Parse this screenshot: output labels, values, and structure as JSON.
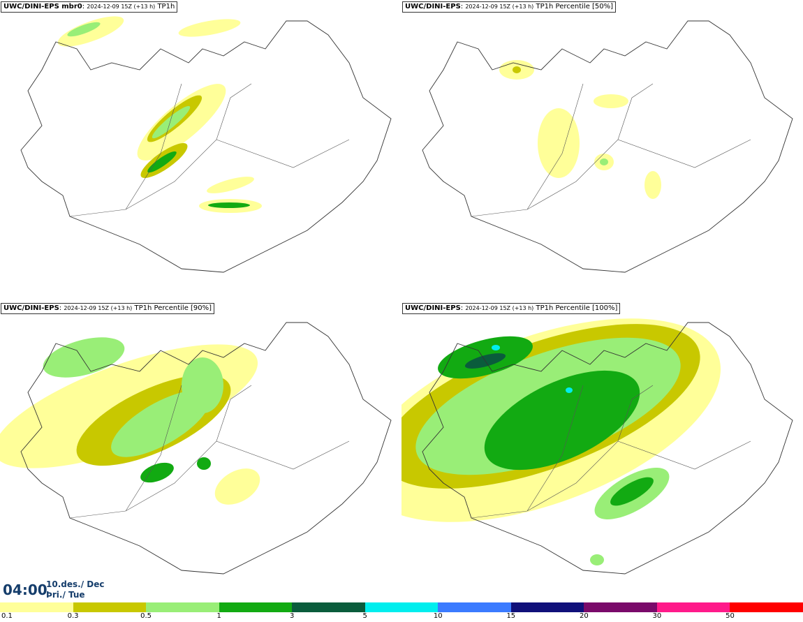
{
  "panels": [
    {
      "model": "UWC/DINI-EPS mbr0",
      "run": "2024-12-09 15Z (+13 h)",
      "field": "TP1h"
    },
    {
      "model": "UWC/DINI-EPS",
      "run": "2024-12-09 15Z (+13 h)",
      "field": "TP1h Percentile [50%]"
    },
    {
      "model": "UWC/DINI-EPS",
      "run": "2024-12-09 15Z (+13 h)",
      "field": "TP1h Percentile [90%]"
    },
    {
      "model": "UWC/DINI-EPS",
      "run": "2024-12-09 15Z (+13 h)",
      "field": "TP1h Percentile [100%]"
    }
  ],
  "valid_time": {
    "time": "04:00",
    "date": "10.des./ Dec",
    "weekday": "Þri./ Tue"
  },
  "colorbar": {
    "labels": [
      "0.1",
      "0.3",
      "0.5",
      "1",
      "3",
      "5",
      "10",
      "15",
      "20",
      "30",
      "50"
    ],
    "colors": [
      "#ffff99",
      "#c8c800",
      "#99ee77",
      "#12aa12",
      "#0a5c3c",
      "#00eeee",
      "#3b7bff",
      "#10107a",
      "#7a0a6a",
      "#ff1a8a",
      "#ff0000"
    ]
  }
}
